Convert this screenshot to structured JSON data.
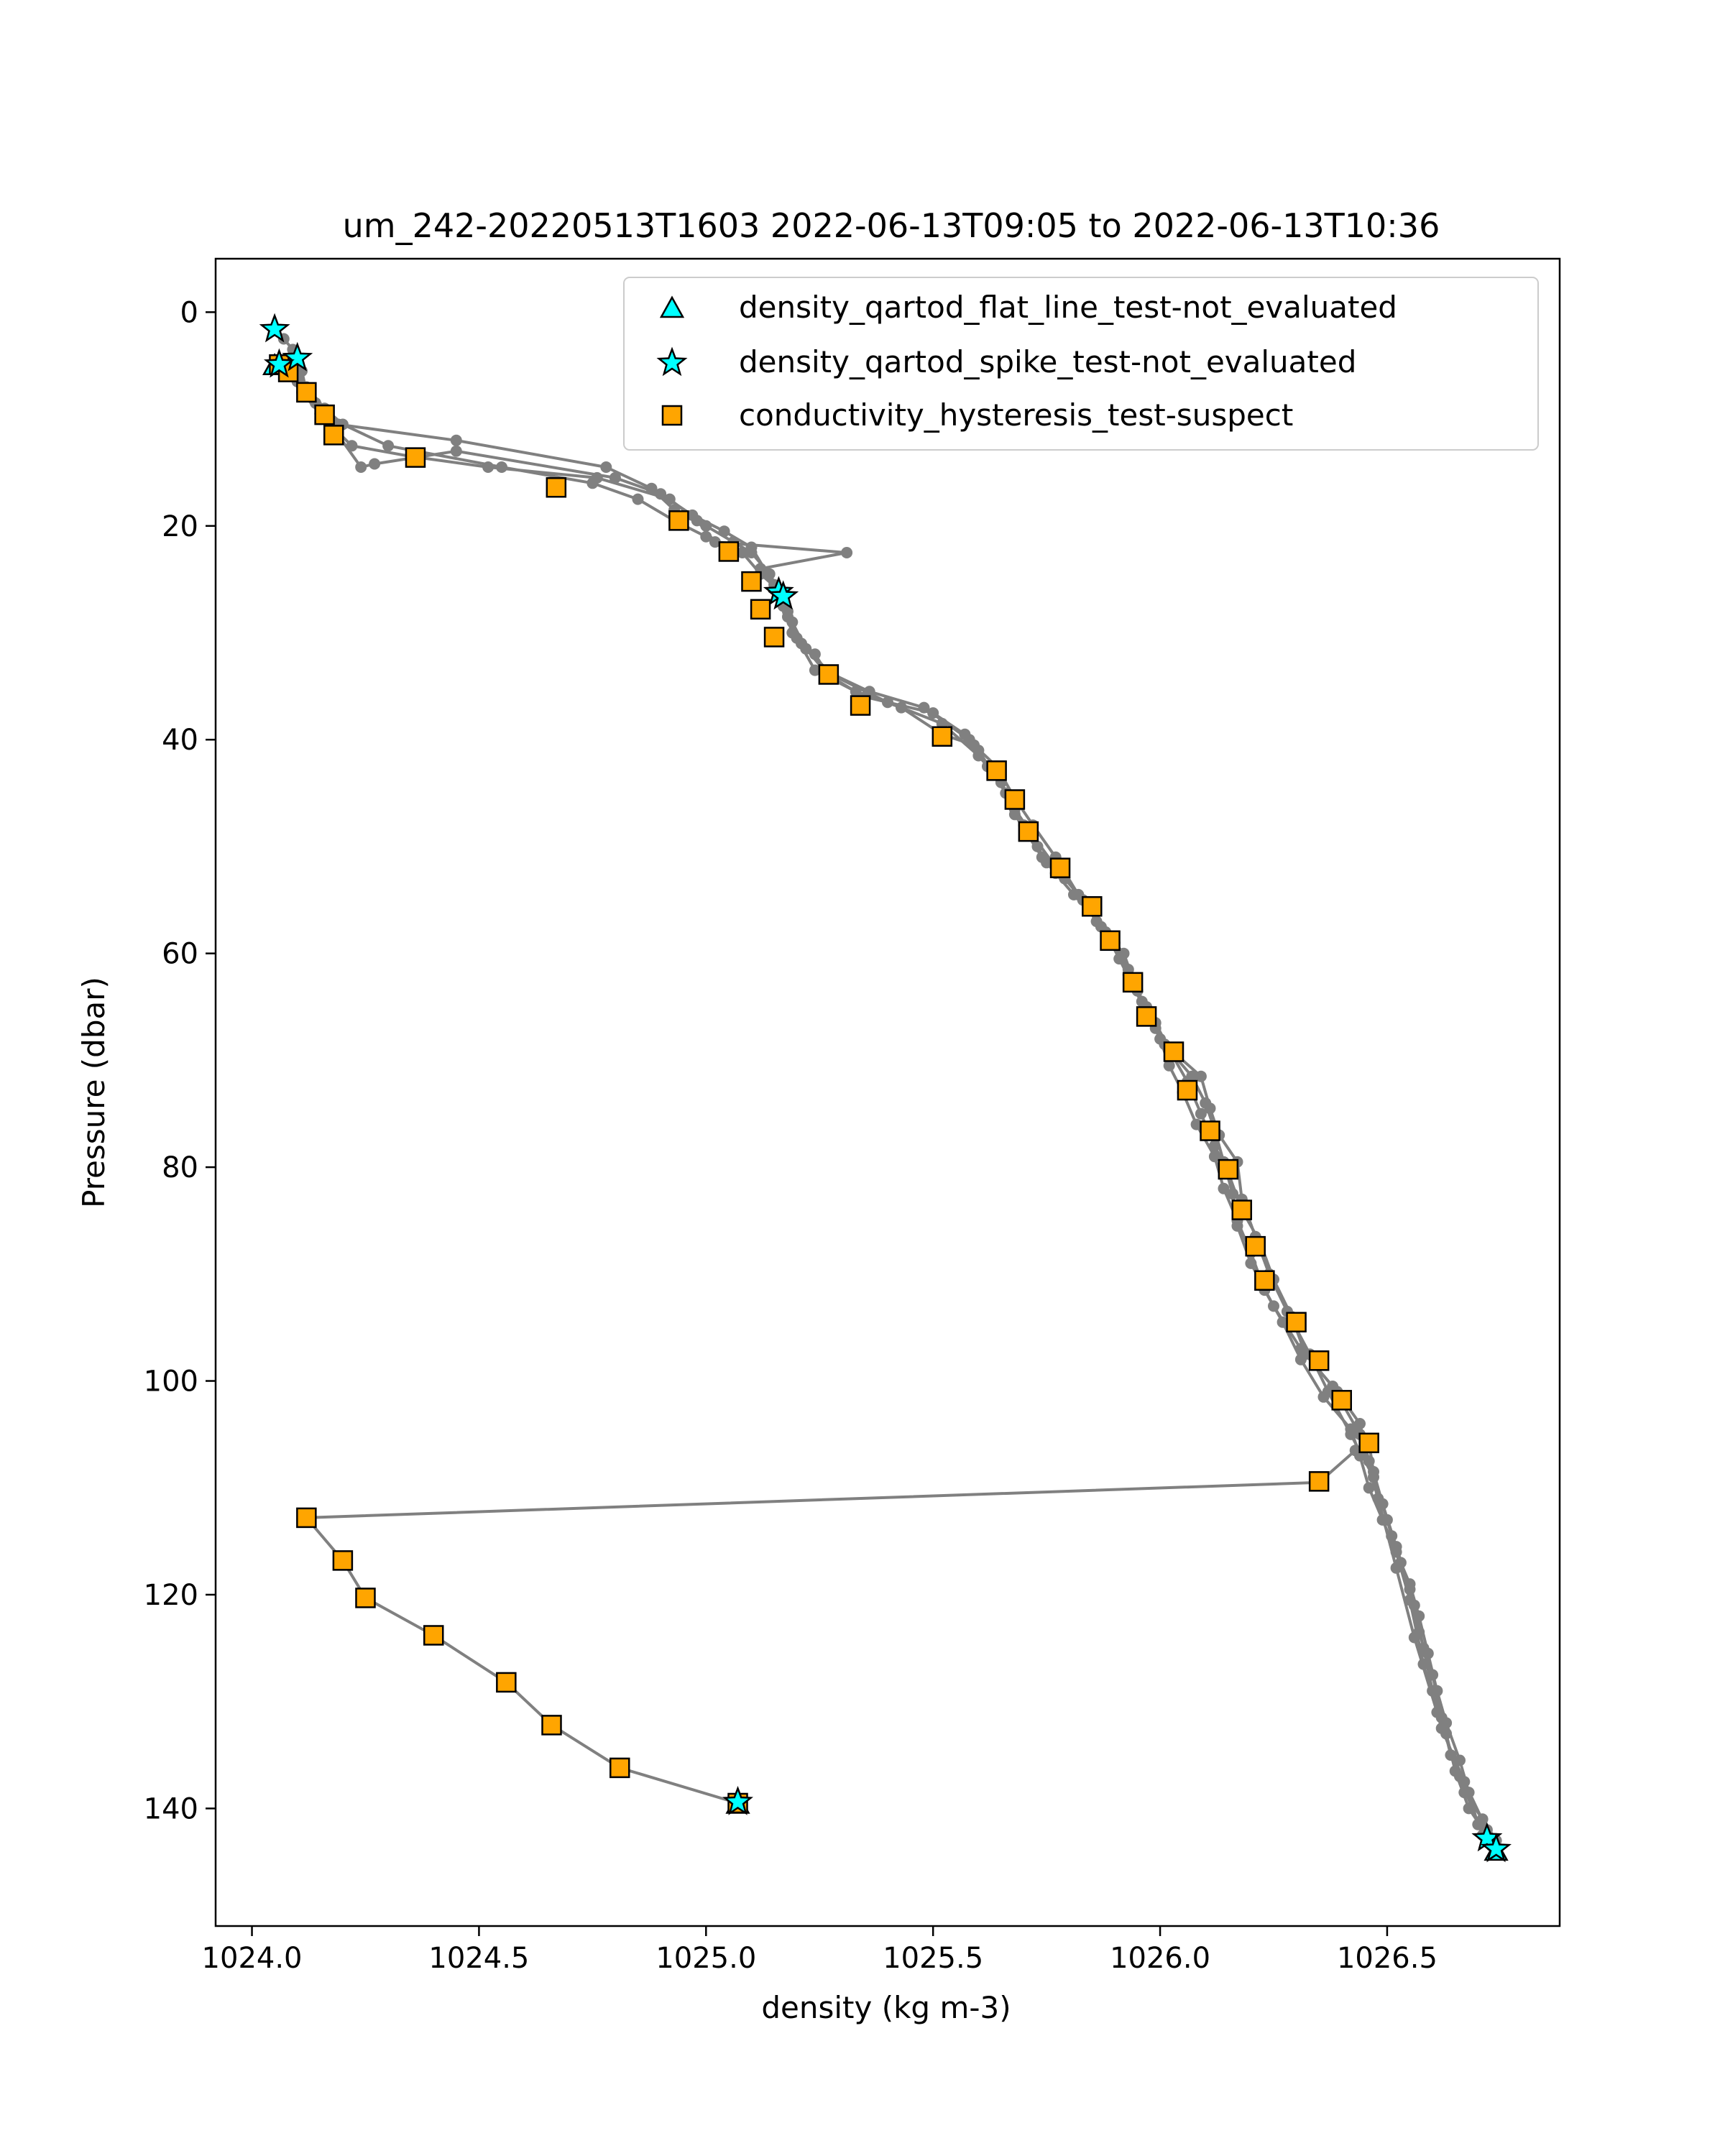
{
  "chart_data": {
    "type": "scatter",
    "title": "um_242-20220513T1603 2022-06-13T09:05 to 2022-06-13T10:36",
    "xlabel": "density (kg m-3)",
    "ylabel": "Pressure (dbar)",
    "xlim": [
      1023.92,
      1026.88
    ],
    "ylim": [
      151,
      -5
    ],
    "y_inverted": true,
    "xticks": [
      "1024.0",
      "1024.5",
      "1025.0",
      "1025.5",
      "1026.0",
      "1026.5"
    ],
    "yticks": [
      "0",
      "20",
      "40",
      "60",
      "80",
      "100",
      "120",
      "140"
    ],
    "grid": false,
    "legend_position": "top-right",
    "colors": {
      "profile_line": "#808080",
      "qc_marker": "#00ffff",
      "suspect_marker": "#ffa500",
      "marker_edge": "#000000"
    },
    "series": [
      {
        "name": "profile",
        "style": "line",
        "points": [
          [
            1024.05,
            1.5
          ],
          [
            1024.07,
            2.5
          ],
          [
            1024.09,
            3.5
          ],
          [
            1024.1,
            4.5
          ],
          [
            1024.11,
            5.5
          ],
          [
            1024.12,
            7.5
          ],
          [
            1024.15,
            9.5
          ],
          [
            1024.19,
            10.5
          ],
          [
            1024.45,
            12.0
          ],
          [
            1024.78,
            14.5
          ],
          [
            1024.88,
            16.5
          ],
          [
            1024.93,
            18.5
          ],
          [
            1025.0,
            20.0
          ],
          [
            1025.06,
            21.5
          ],
          [
            1025.1,
            22.5
          ],
          [
            1025.14,
            24.5
          ],
          [
            1025.16,
            26.0
          ],
          [
            1025.17,
            27.5
          ],
          [
            1025.19,
            30.0
          ],
          [
            1025.24,
            32.0
          ],
          [
            1025.27,
            34.0
          ],
          [
            1025.35,
            36.0
          ],
          [
            1025.5,
            37.5
          ],
          [
            1025.57,
            39.5
          ],
          [
            1025.6,
            41.0
          ],
          [
            1025.63,
            43.0
          ],
          [
            1025.66,
            45.0
          ],
          [
            1025.68,
            47.0
          ],
          [
            1025.71,
            49.0
          ],
          [
            1025.74,
            51.0
          ],
          [
            1025.77,
            52.5
          ],
          [
            1025.81,
            54.5
          ],
          [
            1025.85,
            56.0
          ],
          [
            1025.88,
            58.0
          ],
          [
            1025.91,
            60.5
          ],
          [
            1025.94,
            63.0
          ],
          [
            1025.97,
            65.5
          ],
          [
            1026.0,
            68.0
          ],
          [
            1026.02,
            70.5
          ],
          [
            1026.05,
            73.0
          ],
          [
            1026.08,
            76.0
          ],
          [
            1026.12,
            79.0
          ],
          [
            1026.14,
            82.0
          ],
          [
            1026.17,
            85.0
          ],
          [
            1026.2,
            88.0
          ],
          [
            1026.23,
            91.5
          ],
          [
            1026.27,
            94.5
          ],
          [
            1026.31,
            98.0
          ],
          [
            1026.36,
            101.5
          ],
          [
            1026.42,
            104.5
          ],
          [
            1026.44,
            107.0
          ],
          [
            1026.46,
            110.0
          ],
          [
            1026.49,
            113.0
          ],
          [
            1026.52,
            116.0
          ],
          [
            1026.55,
            119.0
          ],
          [
            1026.57,
            122.0
          ],
          [
            1026.59,
            125.5
          ],
          [
            1026.61,
            129.0
          ],
          [
            1026.63,
            132.0
          ],
          [
            1026.66,
            135.5
          ],
          [
            1026.68,
            138.5
          ],
          [
            1026.7,
            141.5
          ],
          [
            1026.73,
            143.5
          ],
          null,
          [
            1026.71,
            142.5
          ],
          [
            1026.66,
            137.0
          ],
          [
            1026.61,
            131.0
          ],
          [
            1026.56,
            124.0
          ],
          [
            1026.52,
            117.5
          ],
          [
            1026.48,
            111.0
          ],
          [
            1026.44,
            105.0
          ],
          [
            1026.38,
            100.5
          ],
          [
            1026.31,
            97.0
          ],
          [
            1026.25,
            93.0
          ],
          [
            1026.2,
            89.0
          ],
          [
            1026.17,
            85.5
          ],
          [
            1026.16,
            82.5
          ],
          [
            1026.14,
            79.5
          ],
          [
            1026.12,
            76.5
          ],
          [
            1026.1,
            74.0
          ],
          [
            1026.07,
            71.5
          ],
          [
            1026.03,
            69.5
          ],
          [
            1025.99,
            67.0
          ],
          [
            1025.96,
            64.5
          ],
          [
            1025.93,
            61.5
          ],
          [
            1025.9,
            59.0
          ],
          [
            1025.86,
            57.0
          ],
          [
            1025.82,
            54.5
          ],
          [
            1025.77,
            51.0
          ],
          [
            1025.72,
            48.0
          ],
          [
            1025.68,
            45.5
          ],
          [
            1025.64,
            42.5
          ],
          [
            1025.59,
            40.5
          ],
          [
            1025.52,
            39.5
          ],
          [
            1025.43,
            37.0
          ],
          [
            1025.33,
            35.5
          ],
          [
            1025.24,
            33.5
          ],
          [
            1025.2,
            30.5
          ],
          [
            1025.18,
            28.0
          ],
          [
            1025.16,
            26.0
          ],
          [
            1025.12,
            24.5
          ],
          [
            1025.08,
            22.5
          ],
          [
            1025.0,
            21.0
          ],
          [
            1024.93,
            19.5
          ],
          [
            1024.85,
            17.5
          ],
          [
            1024.75,
            16.0
          ],
          [
            1024.55,
            14.5
          ],
          [
            1024.3,
            12.5
          ],
          [
            1024.2,
            10.5
          ],
          [
            1024.16,
            9.0
          ],
          [
            1024.12,
            7.0
          ],
          [
            1024.1,
            5.5
          ],
          [
            1024.06,
            4.5
          ],
          null,
          [
            1024.06,
            5.0
          ],
          [
            1024.09,
            6.0
          ],
          [
            1024.11,
            7.5
          ],
          [
            1024.16,
            10.0
          ],
          [
            1024.22,
            12.5
          ],
          [
            1024.35,
            13.5
          ],
          [
            1024.52,
            14.5
          ],
          [
            1024.76,
            15.5
          ],
          [
            1024.92,
            17.5
          ],
          [
            1024.98,
            19.5
          ],
          [
            1025.02,
            21.5
          ],
          [
            1025.31,
            22.5
          ],
          [
            1025.12,
            24.0
          ],
          [
            1025.16,
            26.5
          ],
          [
            1025.19,
            29.0
          ],
          [
            1025.22,
            31.5
          ],
          [
            1025.28,
            34.0
          ],
          [
            1025.4,
            36.5
          ],
          [
            1025.52,
            38.5
          ],
          [
            1025.6,
            41.5
          ],
          [
            1025.65,
            44.0
          ],
          [
            1025.68,
            46.5
          ],
          [
            1025.72,
            49.0
          ],
          [
            1025.78,
            52.5
          ],
          [
            1025.84,
            55.5
          ],
          [
            1025.89,
            58.5
          ],
          [
            1025.93,
            62.0
          ],
          [
            1025.97,
            65.0
          ],
          [
            1026.01,
            68.5
          ],
          [
            1026.09,
            71.5
          ],
          [
            1026.11,
            74.5
          ],
          [
            1026.13,
            77.0
          ],
          [
            1026.17,
            79.5
          ],
          [
            1026.18,
            83.0
          ],
          [
            1026.21,
            86.5
          ],
          [
            1026.24,
            90.0
          ],
          [
            1026.28,
            93.5
          ],
          [
            1026.33,
            97.5
          ],
          [
            1026.37,
            101.0
          ],
          [
            1026.42,
            105.0
          ],
          [
            1026.47,
            109.0
          ],
          [
            1026.5,
            113.0
          ],
          [
            1026.53,
            117.0
          ],
          [
            1026.56,
            121.0
          ],
          [
            1026.58,
            125.0
          ],
          [
            1026.6,
            129.0
          ],
          [
            1026.63,
            133.0
          ],
          [
            1026.65,
            136.5
          ],
          [
            1026.68,
            140.0
          ],
          [
            1026.72,
            142.5
          ],
          [
            1026.74,
            143.8
          ],
          null,
          [
            1026.72,
            142.0
          ],
          [
            1026.67,
            137.5
          ],
          [
            1026.62,
            132.5
          ],
          [
            1026.58,
            126.5
          ],
          [
            1026.55,
            120.5
          ],
          [
            1026.51,
            114.5
          ],
          [
            1026.47,
            108.5
          ],
          [
            1026.46,
            105.8
          ],
          [
            1026.43,
            106.5
          ],
          [
            1026.35,
            109.5
          ],
          [
            1024.12,
            112.8
          ],
          [
            1024.2,
            116.8
          ],
          [
            1024.25,
            120.3
          ],
          [
            1024.4,
            123.8
          ],
          [
            1024.56,
            128.2
          ],
          [
            1024.66,
            132.2
          ],
          [
            1024.81,
            136.2
          ],
          [
            1025.07,
            139.5
          ],
          null,
          [
            1024.06,
            4.8
          ],
          [
            1024.1,
            6.5
          ],
          [
            1024.14,
            8.5
          ],
          [
            1024.24,
            14.5
          ],
          [
            1024.27,
            14.2
          ],
          [
            1024.45,
            13.0
          ],
          [
            1024.8,
            15.5
          ],
          [
            1024.9,
            17.0
          ],
          [
            1024.97,
            19.0
          ],
          [
            1025.04,
            20.5
          ],
          [
            1025.1,
            22.0
          ],
          [
            1025.15,
            25.5
          ],
          [
            1025.18,
            28.5
          ],
          [
            1025.21,
            31.0
          ],
          [
            1025.26,
            33.5
          ],
          [
            1025.36,
            35.5
          ],
          [
            1025.48,
            37.0
          ],
          [
            1025.58,
            40.0
          ],
          [
            1025.62,
            42.5
          ],
          [
            1025.67,
            45.5
          ],
          [
            1025.7,
            48.0
          ],
          [
            1025.73,
            50.0
          ],
          [
            1025.75,
            51.5
          ],
          [
            1025.79,
            53.0
          ],
          [
            1025.83,
            55.0
          ],
          [
            1025.87,
            57.5
          ],
          [
            1025.92,
            60.0
          ],
          [
            1025.95,
            63.5
          ],
          [
            1025.99,
            66.5
          ],
          [
            1026.02,
            69.0
          ],
          [
            1026.06,
            72.0
          ],
          [
            1026.09,
            75.0
          ],
          [
            1026.12,
            78.0
          ],
          [
            1026.15,
            80.5
          ],
          [
            1026.18,
            84.0
          ],
          [
            1026.22,
            87.0
          ],
          [
            1026.25,
            90.5
          ],
          [
            1026.29,
            94.0
          ],
          [
            1026.32,
            97.5
          ],
          [
            1026.39,
            101.0
          ],
          [
            1026.44,
            104.0
          ],
          [
            1026.46,
            107.5
          ],
          [
            1026.49,
            111.5
          ],
          [
            1026.52,
            115.5
          ],
          [
            1026.55,
            119.5
          ],
          [
            1026.57,
            123.5
          ],
          [
            1026.6,
            127.5
          ],
          [
            1026.62,
            131.5
          ],
          [
            1026.64,
            135.0
          ],
          [
            1026.67,
            138.5
          ],
          [
            1026.71,
            141.0
          ],
          [
            1026.74,
            143.0
          ]
        ]
      },
      {
        "name": "density_qartod_flat_line_test-not_evaluated",
        "marker": "triangle",
        "points": [
          [
            1024.05,
            5.0
          ],
          [
            1025.07,
            139.6
          ],
          [
            1026.74,
            144.0
          ]
        ]
      },
      {
        "name": "density_qartod_spike_test-not_evaluated",
        "marker": "star",
        "points": [
          [
            1024.05,
            1.6
          ],
          [
            1024.1,
            4.3
          ],
          [
            1024.06,
            4.9
          ],
          [
            1025.16,
            26.2
          ],
          [
            1025.17,
            26.6
          ],
          [
            1025.07,
            139.4
          ],
          [
            1026.72,
            142.8
          ],
          [
            1026.74,
            143.8
          ]
        ]
      },
      {
        "name": "conductivity_hysteresis_test-suspect",
        "marker": "square",
        "points": [
          [
            1024.06,
            4.9
          ],
          [
            1024.08,
            5.6
          ],
          [
            1024.12,
            7.5
          ],
          [
            1024.16,
            9.6
          ],
          [
            1024.18,
            11.5
          ],
          [
            1024.36,
            13.6
          ],
          [
            1024.67,
            16.4
          ],
          [
            1024.94,
            19.5
          ],
          [
            1025.05,
            22.4
          ],
          [
            1025.1,
            25.2
          ],
          [
            1025.12,
            27.8
          ],
          [
            1025.15,
            30.4
          ],
          [
            1025.27,
            33.9
          ],
          [
            1025.34,
            36.8
          ],
          [
            1025.52,
            39.7
          ],
          [
            1025.64,
            42.9
          ],
          [
            1025.68,
            45.6
          ],
          [
            1025.71,
            48.6
          ],
          [
            1025.78,
            52.0
          ],
          [
            1025.85,
            55.6
          ],
          [
            1025.89,
            58.8
          ],
          [
            1025.94,
            62.7
          ],
          [
            1025.97,
            65.9
          ],
          [
            1026.03,
            69.2
          ],
          [
            1026.06,
            72.8
          ],
          [
            1026.11,
            76.6
          ],
          [
            1026.15,
            80.2
          ],
          [
            1026.18,
            84.0
          ],
          [
            1026.21,
            87.4
          ],
          [
            1026.23,
            90.6
          ],
          [
            1026.3,
            94.5
          ],
          [
            1026.35,
            98.1
          ],
          [
            1026.4,
            101.8
          ],
          [
            1026.46,
            105.8
          ],
          [
            1026.35,
            109.4
          ],
          [
            1024.12,
            112.8
          ],
          [
            1024.2,
            116.8
          ],
          [
            1024.25,
            120.3
          ],
          [
            1024.4,
            123.8
          ],
          [
            1024.56,
            128.2
          ],
          [
            1024.66,
            132.2
          ],
          [
            1024.81,
            136.2
          ],
          [
            1025.07,
            139.5
          ]
        ]
      }
    ]
  }
}
